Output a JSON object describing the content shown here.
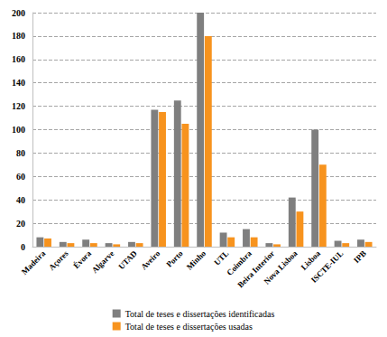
{
  "chart_data": {
    "type": "bar",
    "categories": [
      "Madeira",
      "Açores",
      "Évora",
      "Algarve",
      "UTAD",
      "Aveiro",
      "Porto",
      "Minho",
      "UTL",
      "Coimbra",
      "Beira Interior",
      "Nova Lisboa",
      "Lisboa",
      "ISCTE-IUL",
      "IPB"
    ],
    "series": [
      {
        "name": "Total de teses e dissertações identificadas",
        "color": "#7f7f7f",
        "values": [
          8,
          4,
          6,
          3,
          4,
          117,
          125,
          200,
          12,
          15,
          3,
          42,
          100,
          5,
          6
        ]
      },
      {
        "name": "Total de teses e dissertações usadas",
        "color": "#f7931e",
        "values": [
          7,
          3,
          3,
          2,
          3,
          115,
          105,
          180,
          8,
          8,
          2,
          30,
          70,
          3,
          4
        ]
      }
    ],
    "ylim": [
      0,
      200
    ],
    "yticks": [
      0,
      20,
      40,
      60,
      80,
      100,
      120,
      140,
      160,
      180,
      200
    ],
    "grid": true,
    "legend": "bottom"
  }
}
